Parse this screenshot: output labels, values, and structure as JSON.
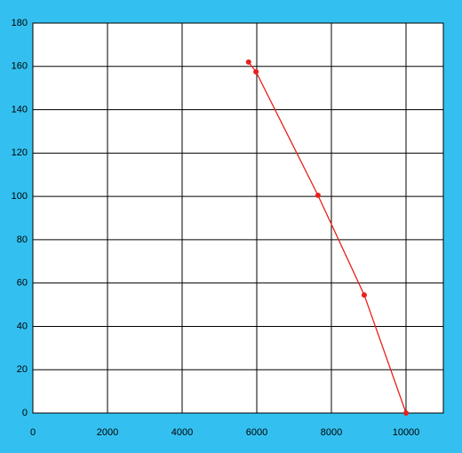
{
  "chart_data": {
    "type": "scatter-line",
    "x": [
      5780,
      5980,
      7640,
      8880,
      10000
    ],
    "values": [
      162,
      157.5,
      100.5,
      54.5,
      0
    ],
    "color": "#e8201c",
    "xlim": [
      0,
      11000
    ],
    "xticks": [
      0,
      2000,
      4000,
      6000,
      8000,
      10000
    ],
    "ylim": [
      0,
      180
    ],
    "yticks": [
      0,
      20,
      40,
      60,
      80,
      100,
      120,
      140,
      160,
      180
    ],
    "grid": true
  }
}
